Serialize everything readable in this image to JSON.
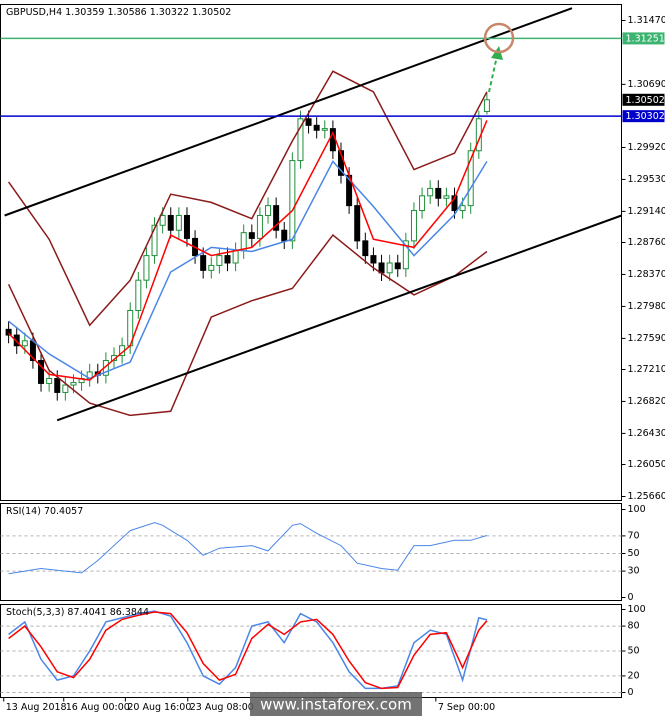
{
  "chart_data": [
    {
      "type": "candlestick",
      "title": "GBPUSD,H4  1.30359 1.30586 1.30322 1.30502",
      "xlim": [
        -1,
        75.6
      ],
      "ylim": [
        1.25611,
        1.31665
      ],
      "yticks": [
        {
          "value": 1.3147,
          "label": "1.31470"
        },
        {
          "value": 1.3069,
          "label": "1.30690"
        },
        {
          "value": 1.2992,
          "label": "1.29920"
        },
        {
          "value": 1.2953,
          "label": "1.29530"
        },
        {
          "value": 1.2914,
          "label": "1.29140"
        },
        {
          "value": 1.2876,
          "label": "1.28760"
        },
        {
          "value": 1.2837,
          "label": "1.28370"
        },
        {
          "value": 1.2798,
          "label": "1.27980"
        },
        {
          "value": 1.2759,
          "label": "1.27590"
        },
        {
          "value": 1.2721,
          "label": "1.27210"
        },
        {
          "value": 1.2682,
          "label": "1.26820"
        },
        {
          "value": 1.2643,
          "label": "1.26430"
        },
        {
          "value": 1.2605,
          "label": "1.26050"
        },
        {
          "value": 1.2566,
          "label": "1.25660"
        }
      ],
      "up_color": "#1f8f3a",
      "down_color": "#000000",
      "open": [
        1.277,
        1.2763,
        1.275,
        1.2756,
        1.2732,
        1.2704,
        1.271,
        1.2693,
        1.2702,
        1.2705,
        1.271,
        1.2718,
        1.2714,
        1.2732,
        1.2738,
        1.275,
        1.2793,
        1.283,
        1.286,
        1.2897,
        1.2909,
        1.2891,
        1.2909,
        1.2881,
        1.286,
        1.2842,
        1.2848,
        1.286,
        1.2851,
        1.2866,
        1.2888,
        1.2881,
        1.2909,
        1.2921,
        1.2891,
        1.2878,
        1.2976,
        1.3027,
        1.3019,
        1.3013,
        1.3015,
        1.2988,
        1.2958,
        1.2921,
        1.2878,
        1.286,
        1.2851,
        1.2839,
        1.2851,
        1.2844,
        1.2878,
        1.2915,
        1.2933,
        1.2942,
        1.293,
        1.2933,
        1.2915,
        1.2921,
        1.2988,
        1.30359
      ],
      "high": [
        1.278,
        1.2773,
        1.2766,
        1.2766,
        1.2742,
        1.272,
        1.272,
        1.2712,
        1.2715,
        1.272,
        1.2728,
        1.2728,
        1.2742,
        1.2748,
        1.276,
        1.2803,
        1.284,
        1.287,
        1.2907,
        1.2919,
        1.2919,
        1.2919,
        1.2919,
        1.2891,
        1.287,
        1.2858,
        1.287,
        1.287,
        1.2876,
        1.2898,
        1.2898,
        1.2919,
        1.2931,
        1.2931,
        1.2901,
        1.2986,
        1.3037,
        1.3037,
        1.3029,
        1.3025,
        1.3025,
        1.2998,
        1.2968,
        1.2931,
        1.2888,
        1.287,
        1.2861,
        1.2861,
        1.2861,
        1.2888,
        1.2925,
        1.2943,
        1.2952,
        1.2952,
        1.2943,
        1.2943,
        1.2931,
        1.2998,
        1.3037,
        1.30586
      ],
      "low": [
        1.2753,
        1.274,
        1.274,
        1.2722,
        1.2694,
        1.2694,
        1.2683,
        1.2683,
        1.2692,
        1.2695,
        1.27,
        1.2704,
        1.2704,
        1.2722,
        1.2728,
        1.274,
        1.2783,
        1.282,
        1.285,
        1.2887,
        1.2881,
        1.2881,
        1.2871,
        1.285,
        1.2832,
        1.2832,
        1.2838,
        1.2841,
        1.2841,
        1.2856,
        1.2871,
        1.2871,
        1.2899,
        1.2881,
        1.2868,
        1.2868,
        1.2966,
        1.3009,
        1.3003,
        1.3003,
        1.2978,
        1.2948,
        1.2911,
        1.2868,
        1.285,
        1.2841,
        1.2829,
        1.2829,
        1.2834,
        1.2834,
        1.2868,
        1.2905,
        1.2923,
        1.292,
        1.292,
        1.2905,
        1.2905,
        1.2911,
        1.2978,
        1.30322
      ],
      "close": [
        1.2763,
        1.275,
        1.2756,
        1.2732,
        1.2704,
        1.271,
        1.2693,
        1.2702,
        1.2705,
        1.271,
        1.2718,
        1.2714,
        1.2732,
        1.2738,
        1.275,
        1.2793,
        1.283,
        1.286,
        1.2897,
        1.2909,
        1.2891,
        1.2909,
        1.2881,
        1.286,
        1.2842,
        1.2848,
        1.286,
        1.2851,
        1.2866,
        1.2888,
        1.2881,
        1.2909,
        1.2921,
        1.2891,
        1.2878,
        1.2976,
        1.3027,
        1.3019,
        1.3013,
        1.3015,
        1.2988,
        1.2958,
        1.2921,
        1.2878,
        1.286,
        1.2851,
        1.2839,
        1.2851,
        1.2844,
        1.2878,
        1.2915,
        1.2933,
        1.2942,
        1.293,
        1.2933,
        1.2915,
        1.2921,
        1.2988,
        1.3027,
        1.30502
      ],
      "series": [
        {
          "color": "#8b1a1a",
          "width": 1.5,
          "x": [
            0,
            5,
            10,
            15,
            20,
            25,
            30,
            35,
            40,
            45,
            50,
            55,
            59
          ],
          "values": [
            1.295,
            1.288,
            1.2775,
            1.283,
            1.2935,
            1.2925,
            1.2905,
            1.3,
            1.3085,
            1.306,
            1.2965,
            1.2985,
            1.306
          ]
        },
        {
          "color": "#8b1a1a",
          "width": 1.5,
          "x": [
            0,
            5,
            10,
            15,
            20,
            25,
            30,
            35,
            40,
            45,
            50,
            55,
            59
          ],
          "values": [
            1.2825,
            1.272,
            1.268,
            1.2665,
            1.267,
            1.2785,
            1.2805,
            1.282,
            1.2885,
            1.2845,
            1.2812,
            1.2835,
            1.2865
          ]
        },
        {
          "color": "#4a86e8",
          "width": 1.5,
          "x": [
            0,
            5,
            10,
            15,
            20,
            25,
            30,
            35,
            40,
            45,
            50,
            55,
            59
          ],
          "values": [
            1.278,
            1.274,
            1.271,
            1.273,
            1.284,
            1.287,
            1.2865,
            1.288,
            1.2975,
            1.292,
            1.286,
            1.291,
            1.2975
          ]
        },
        {
          "color": "#ff0000",
          "width": 1.5,
          "x": [
            0,
            5,
            10,
            15,
            20,
            25,
            30,
            35,
            40,
            45,
            50,
            55,
            59
          ],
          "values": [
            1.2765,
            1.2715,
            1.2708,
            1.275,
            1.2885,
            1.286,
            1.287,
            1.2915,
            1.301,
            1.288,
            1.287,
            1.293,
            1.3025
          ]
        },
        {
          "color": "#000000",
          "width": 2,
          "x": [
            -0.5,
            69.5
          ],
          "values": [
            1.2909,
            1.3162
          ]
        },
        {
          "color": "#000000",
          "width": 2,
          "x": [
            6,
            75.6
          ],
          "values": [
            1.2659,
            1.2909
          ]
        }
      ],
      "hlines": [
        {
          "value": 1.31251,
          "color": "#3cb371"
        },
        {
          "value": 1.30502,
          "color": "#c0c0c0",
          "label_color": "#000000"
        },
        {
          "value": 1.30302,
          "color": "#0000cd"
        }
      ]
    },
    {
      "type": "line",
      "title": "RSI(14) 70.4057",
      "xlim": [
        -1,
        75.6
      ],
      "ylim": [
        -3.4,
        106.8
      ],
      "yticks": [
        100,
        70,
        50,
        30,
        0
      ],
      "grid": true,
      "series": [
        {
          "color": "#4a86e8",
          "width": 1,
          "x": [
            0,
            4,
            9,
            11,
            15,
            18,
            19,
            22,
            24,
            26,
            30,
            32,
            35,
            36,
            38,
            41,
            43,
            46,
            48,
            50,
            52,
            55,
            57,
            59
          ],
          "values": [
            27,
            33,
            28,
            42,
            76,
            85,
            82,
            65,
            48,
            56,
            59,
            53,
            82,
            84,
            73,
            59,
            39,
            33,
            31,
            59,
            59,
            65,
            65,
            70.4057
          ]
        }
      ]
    },
    {
      "type": "line",
      "title": "Stoch(5,3,3) 87.4041 86.3844",
      "xlim": [
        -1,
        75.6
      ],
      "ylim": [
        -6,
        106
      ],
      "yticks": [
        100,
        80,
        50,
        20,
        0
      ],
      "grid": true,
      "series": [
        {
          "color": "#4a86e8",
          "width": 1.5,
          "x": [
            0,
            2,
            4,
            6,
            8,
            10,
            12,
            14,
            16,
            18,
            20,
            22,
            24,
            26,
            28,
            30,
            32,
            34,
            36,
            38,
            40,
            42,
            44,
            46,
            48,
            50,
            52,
            54,
            56,
            58,
            59
          ],
          "values": [
            70,
            85,
            40,
            15,
            20,
            50,
            85,
            90,
            95,
            98,
            92,
            60,
            20,
            10,
            30,
            80,
            85,
            60,
            95,
            85,
            60,
            25,
            5,
            5,
            8,
            60,
            75,
            70,
            15,
            90,
            87.4041
          ]
        },
        {
          "color": "#ff0000",
          "width": 1.5,
          "x": [
            0,
            2,
            4,
            6,
            8,
            10,
            12,
            14,
            16,
            18,
            20,
            22,
            24,
            26,
            28,
            30,
            32,
            34,
            36,
            38,
            40,
            42,
            44,
            46,
            48,
            50,
            52,
            54,
            56,
            58,
            59
          ],
          "values": [
            65,
            80,
            55,
            25,
            18,
            40,
            75,
            88,
            93,
            97,
            95,
            72,
            35,
            15,
            22,
            65,
            82,
            70,
            85,
            88,
            70,
            38,
            12,
            5,
            6,
            45,
            70,
            72,
            30,
            75,
            86.3844
          ]
        }
      ],
      "xticks": [
        {
          "value": -0.6,
          "label": "13 Aug 2018"
        },
        {
          "value": 6.8,
          "label": "16 Aug 00:00"
        },
        {
          "value": 14.4,
          "label": "20 Aug 16:00"
        },
        {
          "value": 22.1,
          "label": "23 Aug 08:00"
        },
        {
          "value": 52.7,
          "label": "7 Sep 00:00"
        }
      ],
      "watermark": "www.instaforex.com"
    }
  ]
}
